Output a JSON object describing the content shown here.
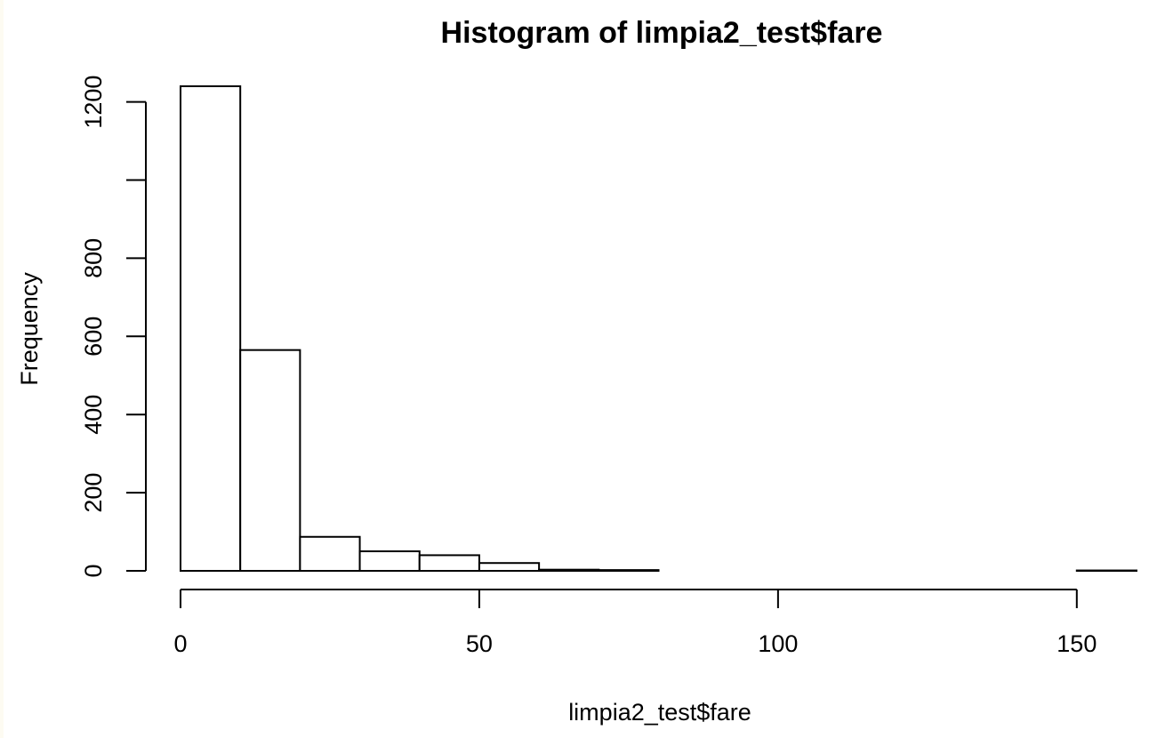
{
  "chart_data": {
    "type": "bar",
    "title": "Histogram of limpia2_test$fare",
    "xlabel": "limpia2_test$fare",
    "ylabel": "Frequency",
    "bin_edges": [
      0,
      10,
      20,
      30,
      40,
      50,
      60,
      70,
      80,
      90,
      100,
      110,
      120,
      130,
      140,
      150,
      160
    ],
    "values": [
      1240,
      565,
      87,
      50,
      40,
      20,
      3,
      2,
      0,
      0,
      0,
      0,
      0,
      0,
      0,
      1
    ],
    "xlim": [
      0,
      160
    ],
    "ylim": [
      0,
      1240
    ],
    "xticks": [
      0,
      50,
      100,
      150
    ],
    "yticks": [
      0,
      200,
      400,
      600,
      800,
      1000,
      1200
    ],
    "ytick_labels": [
      "0",
      "200",
      "400",
      "600",
      "800",
      "",
      "1200"
    ],
    "grid": false,
    "legend": "none"
  }
}
